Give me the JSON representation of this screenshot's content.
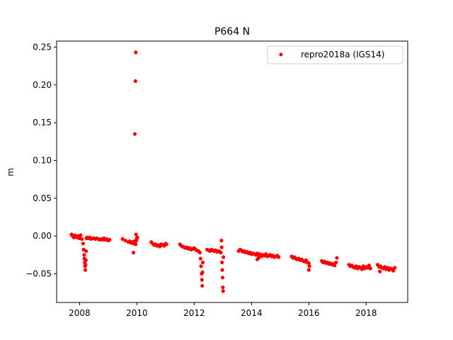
{
  "chart_data": {
    "type": "scatter",
    "title": "P664 N",
    "xlabel": "",
    "ylabel": "m",
    "xlim": [
      2007.2,
      2019.45
    ],
    "ylim": [
      -0.088,
      0.258
    ],
    "xticks": [
      2008,
      2010,
      2012,
      2014,
      2016,
      2018
    ],
    "xtick_labels": [
      "2008",
      "2010",
      "2012",
      "2014",
      "2016",
      "2018"
    ],
    "yticks": [
      -0.05,
      0.0,
      0.05,
      0.1,
      0.15,
      0.2,
      0.25
    ],
    "ytick_labels": [
      "−0.05",
      "0.00",
      "0.05",
      "0.10",
      "0.15",
      "0.20",
      "0.25"
    ],
    "grid": false,
    "legend_position": "top-right",
    "series": [
      {
        "name": "repro2018a (IGS14)",
        "color": "#ff0000",
        "marker": "circle",
        "x": [
          2007.72,
          2007.76,
          2007.8,
          2007.84,
          2007.88,
          2007.92,
          2007.96,
          2008.0,
          2008.04,
          2008.08,
          2008.12,
          2008.14,
          2008.16,
          2008.17,
          2008.18,
          2008.19,
          2008.2,
          2008.21,
          2008.22,
          2008.23,
          2008.24,
          2008.26,
          2008.3,
          2008.35,
          2008.4,
          2008.45,
          2008.5,
          2008.55,
          2008.6,
          2008.65,
          2008.7,
          2008.75,
          2008.8,
          2008.85,
          2008.9,
          2008.95,
          2009.0,
          2009.05,
          2009.5,
          2009.6,
          2009.7,
          2009.75,
          2009.8,
          2009.85,
          2009.88,
          2009.9,
          2009.92,
          2009.94,
          2009.96,
          2009.98,
          2010.0,
          2010.02,
          2009.88,
          2009.93,
          2009.95,
          2009.96,
          2009.97,
          2010.5,
          2010.55,
          2010.6,
          2010.65,
          2010.7,
          2010.75,
          2010.8,
          2010.85,
          2010.9,
          2010.95,
          2011.0,
          2011.03,
          2011.5,
          2011.55,
          2011.6,
          2011.65,
          2011.7,
          2011.75,
          2011.8,
          2011.85,
          2011.9,
          2011.95,
          2012.0,
          2012.05,
          2012.1,
          2012.15,
          2012.2,
          2012.22,
          2012.24,
          2012.26,
          2012.27,
          2012.28,
          2012.29,
          2012.3,
          2012.45,
          2012.5,
          2012.55,
          2012.6,
          2012.65,
          2012.7,
          2012.75,
          2012.8,
          2012.85,
          2012.9,
          2012.93,
          2012.95,
          2012.96,
          2012.97,
          2012.98,
          2012.99,
          2013.0,
          2013.01,
          2013.02,
          2013.55,
          2013.6,
          2013.65,
          2013.7,
          2013.75,
          2013.8,
          2013.85,
          2013.9,
          2013.95,
          2014.0,
          2014.05,
          2014.1,
          2014.15,
          2014.2,
          2014.25,
          2014.3,
          2014.35,
          2014.4,
          2014.45,
          2014.5,
          2014.55,
          2014.6,
          2014.65,
          2014.7,
          2014.75,
          2014.8,
          2014.85,
          2014.9,
          2014.95,
          2014.2,
          2014.25,
          2015.4,
          2015.45,
          2015.5,
          2015.55,
          2015.6,
          2015.65,
          2015.7,
          2015.75,
          2015.8,
          2015.85,
          2015.9,
          2015.95,
          2016.0,
          2016.02,
          2016.0,
          2016.45,
          2016.5,
          2016.55,
          2016.6,
          2016.65,
          2016.7,
          2016.75,
          2016.8,
          2016.85,
          2016.9,
          2016.95,
          2016.98,
          2017.4,
          2017.45,
          2017.5,
          2017.55,
          2017.6,
          2017.65,
          2017.7,
          2017.75,
          2017.8,
          2017.85,
          2017.9,
          2017.95,
          2018.0,
          2018.05,
          2018.1,
          2018.15,
          2018.4,
          2018.45,
          2018.5,
          2018.55,
          2018.6,
          2018.65,
          2018.7,
          2018.75,
          2018.8,
          2018.85,
          2018.9,
          2018.95,
          2019.0,
          2018.48
        ],
        "y": [
          0.002,
          0.0,
          -0.002,
          0.001,
          -0.001,
          -0.002,
          0.0,
          -0.003,
          0.001,
          -0.004,
          -0.01,
          -0.018,
          -0.025,
          -0.03,
          -0.035,
          -0.04,
          -0.045,
          -0.038,
          -0.032,
          -0.02,
          -0.003,
          -0.002,
          -0.003,
          -0.002,
          -0.004,
          -0.003,
          -0.003,
          -0.004,
          -0.003,
          -0.004,
          -0.005,
          -0.004,
          -0.005,
          -0.003,
          -0.005,
          -0.004,
          -0.006,
          -0.005,
          -0.004,
          -0.006,
          -0.008,
          -0.007,
          -0.009,
          -0.008,
          -0.01,
          -0.007,
          -0.008,
          -0.01,
          -0.011,
          -0.006,
          -0.003,
          -0.002,
          -0.022,
          0.135,
          0.205,
          0.243,
          0.002,
          -0.008,
          -0.01,
          -0.012,
          -0.011,
          -0.013,
          -0.012,
          -0.014,
          -0.011,
          -0.012,
          -0.013,
          -0.01,
          -0.011,
          -0.011,
          -0.013,
          -0.014,
          -0.015,
          -0.016,
          -0.015,
          -0.017,
          -0.016,
          -0.018,
          -0.017,
          -0.016,
          -0.018,
          -0.019,
          -0.02,
          -0.022,
          -0.03,
          -0.04,
          -0.05,
          -0.058,
          -0.066,
          -0.048,
          -0.035,
          -0.018,
          -0.019,
          -0.02,
          -0.018,
          -0.019,
          -0.02,
          -0.019,
          -0.021,
          -0.02,
          -0.021,
          -0.022,
          -0.006,
          -0.015,
          -0.035,
          -0.045,
          -0.055,
          -0.068,
          -0.073,
          -0.028,
          -0.02,
          -0.018,
          -0.019,
          -0.021,
          -0.02,
          -0.022,
          -0.021,
          -0.023,
          -0.022,
          -0.024,
          -0.023,
          -0.024,
          -0.025,
          -0.023,
          -0.026,
          -0.024,
          -0.027,
          -0.025,
          -0.026,
          -0.024,
          -0.027,
          -0.026,
          -0.025,
          -0.027,
          -0.026,
          -0.028,
          -0.027,
          -0.026,
          -0.028,
          -0.031,
          -0.029,
          -0.027,
          -0.029,
          -0.028,
          -0.03,
          -0.031,
          -0.03,
          -0.032,
          -0.031,
          -0.033,
          -0.034,
          -0.032,
          -0.035,
          -0.036,
          -0.04,
          -0.045,
          -0.033,
          -0.035,
          -0.034,
          -0.036,
          -0.035,
          -0.037,
          -0.036,
          -0.038,
          -0.037,
          -0.039,
          -0.035,
          -0.029,
          -0.038,
          -0.04,
          -0.039,
          -0.041,
          -0.042,
          -0.04,
          -0.043,
          -0.041,
          -0.042,
          -0.044,
          -0.04,
          -0.043,
          -0.041,
          -0.042,
          -0.039,
          -0.043,
          -0.038,
          -0.041,
          -0.04,
          -0.042,
          -0.043,
          -0.041,
          -0.044,
          -0.042,
          -0.045,
          -0.043,
          -0.044,
          -0.046,
          -0.042,
          -0.047
        ]
      }
    ]
  }
}
